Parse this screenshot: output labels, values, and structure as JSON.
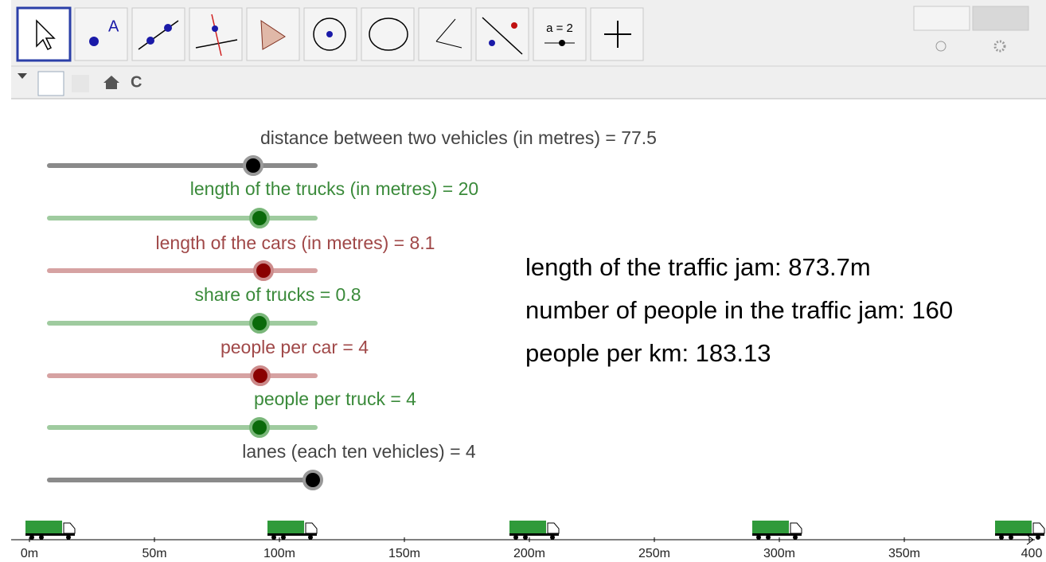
{
  "toolbar": {
    "slider_tool_label": "a = 2"
  },
  "sliders": [
    {
      "label": "distance between two vehicles (in metres) = 77.5"
    },
    {
      "label": "length of the trucks (in metres) = 20"
    },
    {
      "label": "length of the cars (in metres) = 8.1"
    },
    {
      "label": "share of trucks = 0.8"
    },
    {
      "label": "people per car = 4"
    },
    {
      "label": "people per truck = 4"
    },
    {
      "label": "lanes (each ten vehicles) = 4"
    }
  ],
  "results": [
    "length of the traffic jam: 873.7m",
    "number of people in the traffic jam: 160",
    "people per km: 183.13"
  ],
  "axis_labels": [
    "0m",
    "50m",
    "100m",
    "150m",
    "200m",
    "250m",
    "300m",
    "350m",
    "400"
  ]
}
